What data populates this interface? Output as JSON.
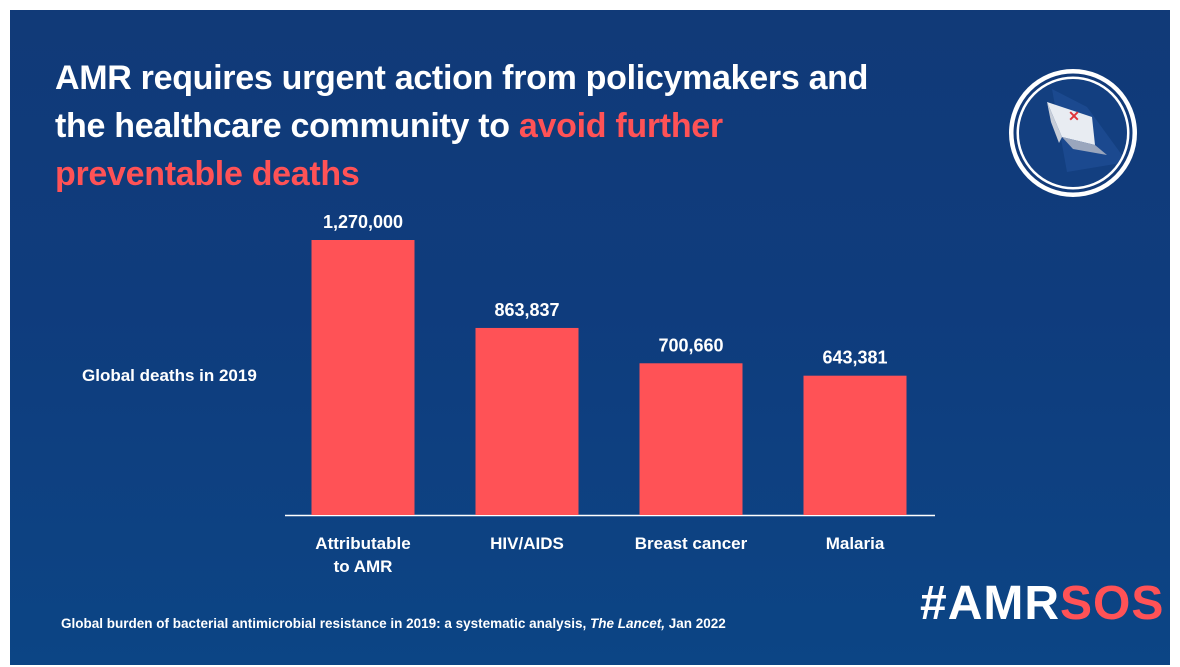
{
  "headline": {
    "part1": "AMR requires urgent action from policymakers and the healthcare community to ",
    "accent": "avoid further preventable deaths"
  },
  "colors": {
    "accent": "#ff5256",
    "background": "#0f3c7d",
    "text": "#ffffff"
  },
  "logo": {
    "icon": "amr-sos-logo-icon"
  },
  "chart_data": {
    "type": "bar",
    "categories": [
      "Attributable to AMR",
      "HIV/AIDS",
      "Breast cancer",
      "Malaria"
    ],
    "category_lines": [
      [
        "Attributable",
        "to AMR"
      ],
      [
        "HIV/AIDS"
      ],
      [
        "Breast cancer"
      ],
      [
        "Malaria"
      ]
    ],
    "values": [
      1270000,
      863837,
      700660,
      643381
    ],
    "value_labels": [
      "1,270,000",
      "863,837",
      "700,660",
      "643,381"
    ],
    "ylabel": "Global deaths in 2019",
    "ylim": [
      0,
      1270000
    ],
    "grid": false,
    "bar_color": "#ff5256"
  },
  "source": {
    "text": "Global burden of bacterial antimicrobial resistance in 2019: a systematic analysis, ",
    "journal": "The Lancet,",
    "date": " Jan 2022"
  },
  "hashtag": {
    "prefix": "#AMR",
    "accent": "SOS"
  }
}
